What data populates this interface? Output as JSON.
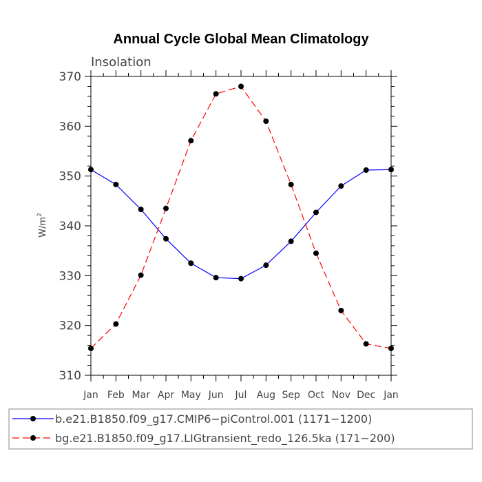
{
  "chart_data": {
    "type": "line",
    "title": "Annual Cycle Global Mean Climatology",
    "subtitle": "Insolation",
    "xlabel": "",
    "ylabel": "W/m",
    "ylabel_superscript": "2",
    "categories": [
      "Jan",
      "Feb",
      "Mar",
      "Apr",
      "May",
      "Jun",
      "Jul",
      "Aug",
      "Sep",
      "Oct",
      "Nov",
      "Dec",
      "Jan"
    ],
    "ylim": [
      310,
      370
    ],
    "yticks": [
      310,
      320,
      330,
      340,
      350,
      360,
      370
    ],
    "grid": false,
    "legend_position": "bottom",
    "series": [
      {
        "name": "b.e21.B1850.f09_g17.CMIP6−piControl.001 (1171−1200)",
        "color": "#0000ff",
        "line_style": "solid",
        "marker": "filled-circle",
        "values": [
          351.3,
          348.3,
          343.3,
          337.4,
          332.5,
          329.6,
          329.4,
          332.1,
          336.9,
          342.7,
          348.0,
          351.2,
          351.3
        ]
      },
      {
        "name": "bg.e21.B1850.f09_g17.LIGtransient_redo_126.5ka (171−200)",
        "color": "#ff0000",
        "line_style": "dashed",
        "marker": "filled-circle",
        "values": [
          315.4,
          320.3,
          330.1,
          343.5,
          357.1,
          366.5,
          368.0,
          361.0,
          348.3,
          334.5,
          323.0,
          316.3,
          315.4
        ]
      }
    ]
  }
}
